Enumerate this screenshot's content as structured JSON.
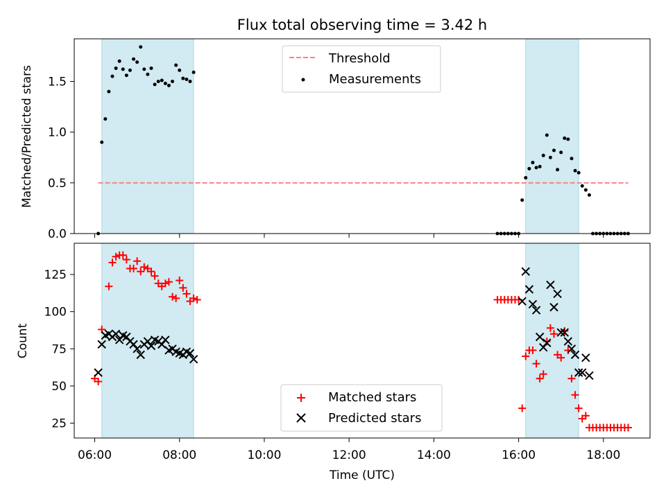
{
  "chart_data": {
    "title": "Flux total observing time = 3.42 h",
    "xlabel": "Time (UTC)",
    "x_ticks": [
      "06:00",
      "08:00",
      "10:00",
      "12:00",
      "14:00",
      "16:00",
      "18:00"
    ],
    "x_range": [
      "05:31",
      "19:06"
    ],
    "shaded_intervals": [
      [
        "06:10",
        "08:20"
      ],
      [
        "16:10",
        "17:25"
      ]
    ],
    "shade_color": "#add8e6",
    "panels": [
      {
        "type": "scatter",
        "ylabel": "Matched/Predicted stars",
        "ylim": [
          0,
          1.92
        ],
        "y_ticks": [
          "0.0",
          "0.5",
          "1.0",
          "1.5"
        ],
        "legend_position": "upper center",
        "threshold": {
          "name": "Threshold",
          "value": 0.5,
          "x_range": [
            "06:05",
            "18:35"
          ],
          "color": "#ff7f7f",
          "style": "dashed"
        },
        "series": [
          {
            "name": "Measurements",
            "color": "#000000",
            "marker": "dot",
            "points": [
              [
                "06:05",
                0.0
              ],
              [
                "06:10",
                0.9
              ],
              [
                "06:15",
                1.13
              ],
              [
                "06:20",
                1.4
              ],
              [
                "06:25",
                1.55
              ],
              [
                "06:30",
                1.63
              ],
              [
                "06:35",
                1.7
              ],
              [
                "06:40",
                1.62
              ],
              [
                "06:45",
                1.56
              ],
              [
                "06:50",
                1.61
              ],
              [
                "06:55",
                1.72
              ],
              [
                "07:00",
                1.69
              ],
              [
                "07:05",
                1.84
              ],
              [
                "07:10",
                1.62
              ],
              [
                "07:15",
                1.57
              ],
              [
                "07:20",
                1.63
              ],
              [
                "07:25",
                1.47
              ],
              [
                "07:30",
                1.5
              ],
              [
                "07:35",
                1.51
              ],
              [
                "07:40",
                1.48
              ],
              [
                "07:45",
                1.46
              ],
              [
                "07:50",
                1.5
              ],
              [
                "07:55",
                1.66
              ],
              [
                "08:00",
                1.61
              ],
              [
                "08:05",
                1.53
              ],
              [
                "08:10",
                1.52
              ],
              [
                "08:15",
                1.5
              ],
              [
                "08:20",
                1.59
              ],
              [
                "15:30",
                0.0
              ],
              [
                "15:35",
                0.0
              ],
              [
                "15:40",
                0.0
              ],
              [
                "15:45",
                0.0
              ],
              [
                "15:50",
                0.0
              ],
              [
                "15:55",
                0.0
              ],
              [
                "16:00",
                0.0
              ],
              [
                "16:05",
                0.33
              ],
              [
                "16:10",
                0.55
              ],
              [
                "16:15",
                0.64
              ],
              [
                "16:20",
                0.7
              ],
              [
                "16:25",
                0.65
              ],
              [
                "16:30",
                0.66
              ],
              [
                "16:35",
                0.77
              ],
              [
                "16:40",
                0.97
              ],
              [
                "16:45",
                0.75
              ],
              [
                "16:50",
                0.82
              ],
              [
                "16:55",
                0.63
              ],
              [
                "17:00",
                0.8
              ],
              [
                "17:05",
                0.94
              ],
              [
                "17:10",
                0.93
              ],
              [
                "17:15",
                0.74
              ],
              [
                "17:20",
                0.62
              ],
              [
                "17:25",
                0.6
              ],
              [
                "17:30",
                0.47
              ],
              [
                "17:35",
                0.43
              ],
              [
                "17:40",
                0.38
              ],
              [
                "17:45",
                0.0
              ],
              [
                "17:50",
                0.0
              ],
              [
                "17:55",
                0.0
              ],
              [
                "18:00",
                0.0
              ],
              [
                "18:05",
                0.0
              ],
              [
                "18:10",
                0.0
              ],
              [
                "18:15",
                0.0
              ],
              [
                "18:20",
                0.0
              ],
              [
                "18:25",
                0.0
              ],
              [
                "18:30",
                0.0
              ],
              [
                "18:35",
                0.0
              ]
            ]
          }
        ]
      },
      {
        "type": "scatter",
        "ylabel": "Count",
        "ylim": [
          15,
          146
        ],
        "y_ticks": [
          "25",
          "50",
          "75",
          "100",
          "125"
        ],
        "legend_position": "lower center",
        "series": [
          {
            "name": "Matched stars",
            "color": "#ff0000",
            "marker": "plus",
            "points": [
              [
                "06:00",
                55
              ],
              [
                "06:05",
                53
              ],
              [
                "06:10",
                88
              ],
              [
                "06:20",
                117
              ],
              [
                "06:25",
                133
              ],
              [
                "06:30",
                137
              ],
              [
                "06:35",
                138
              ],
              [
                "06:40",
                138
              ],
              [
                "06:45",
                135
              ],
              [
                "06:50",
                129
              ],
              [
                "06:55",
                129
              ],
              [
                "07:00",
                134
              ],
              [
                "07:05",
                127
              ],
              [
                "07:10",
                130
              ],
              [
                "07:15",
                129
              ],
              [
                "07:20",
                127
              ],
              [
                "07:25",
                124
              ],
              [
                "07:30",
                119
              ],
              [
                "07:35",
                117
              ],
              [
                "07:40",
                119
              ],
              [
                "07:45",
                120
              ],
              [
                "07:50",
                110
              ],
              [
                "07:55",
                109
              ],
              [
                "08:00",
                121
              ],
              [
                "08:05",
                116
              ],
              [
                "08:10",
                112
              ],
              [
                "08:15",
                107
              ],
              [
                "08:20",
                109
              ],
              [
                "08:25",
                108
              ],
              [
                "15:30",
                108
              ],
              [
                "15:35",
                108
              ],
              [
                "15:40",
                108
              ],
              [
                "15:45",
                108
              ],
              [
                "15:50",
                108
              ],
              [
                "15:55",
                108
              ],
              [
                "16:00",
                108
              ],
              [
                "16:05",
                35
              ],
              [
                "16:10",
                70
              ],
              [
                "16:15",
                74
              ],
              [
                "16:20",
                74
              ],
              [
                "16:25",
                65
              ],
              [
                "16:30",
                55
              ],
              [
                "16:35",
                58
              ],
              [
                "16:40",
                80
              ],
              [
                "16:45",
                89
              ],
              [
                "16:50",
                85
              ],
              [
                "16:55",
                71
              ],
              [
                "17:00",
                69
              ],
              [
                "17:05",
                87
              ],
              [
                "17:10",
                74
              ],
              [
                "17:15",
                55
              ],
              [
                "17:20",
                44
              ],
              [
                "17:25",
                35
              ],
              [
                "17:30",
                28
              ],
              [
                "17:35",
                30
              ],
              [
                "17:40",
                22
              ],
              [
                "17:45",
                22
              ],
              [
                "17:50",
                22
              ],
              [
                "17:55",
                22
              ],
              [
                "18:00",
                22
              ],
              [
                "18:05",
                22
              ],
              [
                "18:10",
                22
              ],
              [
                "18:15",
                22
              ],
              [
                "18:20",
                22
              ],
              [
                "18:25",
                22
              ],
              [
                "18:30",
                22
              ],
              [
                "18:35",
                22
              ]
            ]
          },
          {
            "name": "Predicted stars",
            "color": "#000000",
            "marker": "x",
            "points": [
              [
                "06:05",
                59
              ],
              [
                "06:10",
                78
              ],
              [
                "06:15",
                84
              ],
              [
                "06:20",
                85
              ],
              [
                "06:25",
                83
              ],
              [
                "06:30",
                85
              ],
              [
                "06:35",
                81
              ],
              [
                "06:40",
                84
              ],
              [
                "06:45",
                83
              ],
              [
                "06:50",
                80
              ],
              [
                "06:55",
                78
              ],
              [
                "07:00",
                75
              ],
              [
                "07:05",
                71
              ],
              [
                "07:10",
                78
              ],
              [
                "07:15",
                80
              ],
              [
                "07:20",
                77
              ],
              [
                "07:25",
                81
              ],
              [
                "07:30",
                80
              ],
              [
                "07:35",
                78
              ],
              [
                "07:40",
                81
              ],
              [
                "07:45",
                74
              ],
              [
                "07:50",
                75
              ],
              [
                "07:55",
                73
              ],
              [
                "08:00",
                72
              ],
              [
                "08:05",
                71
              ],
              [
                "08:10",
                73
              ],
              [
                "08:15",
                72
              ],
              [
                "08:20",
                68
              ],
              [
                "16:05",
                107
              ],
              [
                "16:10",
                127
              ],
              [
                "16:15",
                115
              ],
              [
                "16:20",
                105
              ],
              [
                "16:25",
                101
              ],
              [
                "16:30",
                83
              ],
              [
                "16:35",
                76
              ],
              [
                "16:40",
                79
              ],
              [
                "16:45",
                118
              ],
              [
                "16:50",
                103
              ],
              [
                "16:55",
                112
              ],
              [
                "17:00",
                86
              ],
              [
                "17:05",
                86
              ],
              [
                "17:10",
                80
              ],
              [
                "17:15",
                75
              ],
              [
                "17:20",
                71
              ],
              [
                "17:25",
                59
              ],
              [
                "17:30",
                59
              ],
              [
                "17:35",
                69
              ],
              [
                "17:40",
                57
              ]
            ]
          }
        ]
      }
    ]
  }
}
